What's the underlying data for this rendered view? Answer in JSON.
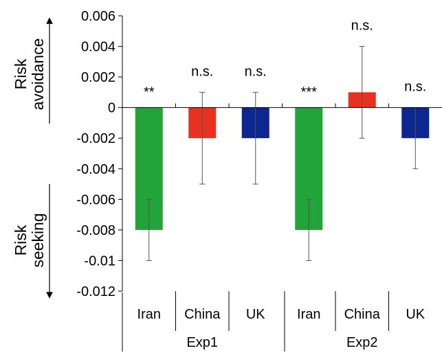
{
  "chart_data": {
    "type": "bar",
    "title": "",
    "ylim": [
      -0.012,
      0.006
    ],
    "y_ticks": [
      0.006,
      0.004,
      0.002,
      0,
      -0.002,
      -0.004,
      -0.006,
      -0.008,
      -0.01,
      -0.012
    ],
    "y_tick_labels": [
      "0.006",
      "0.004",
      "0.002",
      "0",
      "-0.002",
      "-0.004",
      "-0.006",
      "-0.008",
      "-0.01",
      "-0.012"
    ],
    "side_labels": {
      "top": [
        "Risk",
        "avoidance"
      ],
      "bottom": [
        "Risk",
        "seeking"
      ]
    },
    "groups": [
      {
        "name": "Exp1",
        "bars": [
          {
            "category": "Iran",
            "value": -0.008,
            "error_low": -0.01,
            "error_high": -0.006,
            "significance": "**",
            "color": "#22a43a"
          },
          {
            "category": "China",
            "value": -0.002,
            "error_low": -0.005,
            "error_high": 0.001,
            "significance": "n.s.",
            "color": "#e8311f"
          },
          {
            "category": "UK",
            "value": -0.002,
            "error_low": -0.005,
            "error_high": 0.001,
            "significance": "n.s.",
            "color": "#0d2791"
          }
        ]
      },
      {
        "name": "Exp2",
        "bars": [
          {
            "category": "Iran",
            "value": -0.008,
            "error_low": -0.01,
            "error_high": -0.006,
            "significance": "***",
            "color": "#22a43a"
          },
          {
            "category": "China",
            "value": 0.001,
            "error_low": -0.002,
            "error_high": 0.004,
            "significance": "n.s.",
            "color": "#e8311f"
          },
          {
            "category": "UK",
            "value": -0.002,
            "error_low": -0.004,
            "error_high": 0.0,
            "significance": "n.s.",
            "color": "#0d2791"
          }
        ]
      }
    ],
    "grid": false,
    "legend": "none"
  }
}
